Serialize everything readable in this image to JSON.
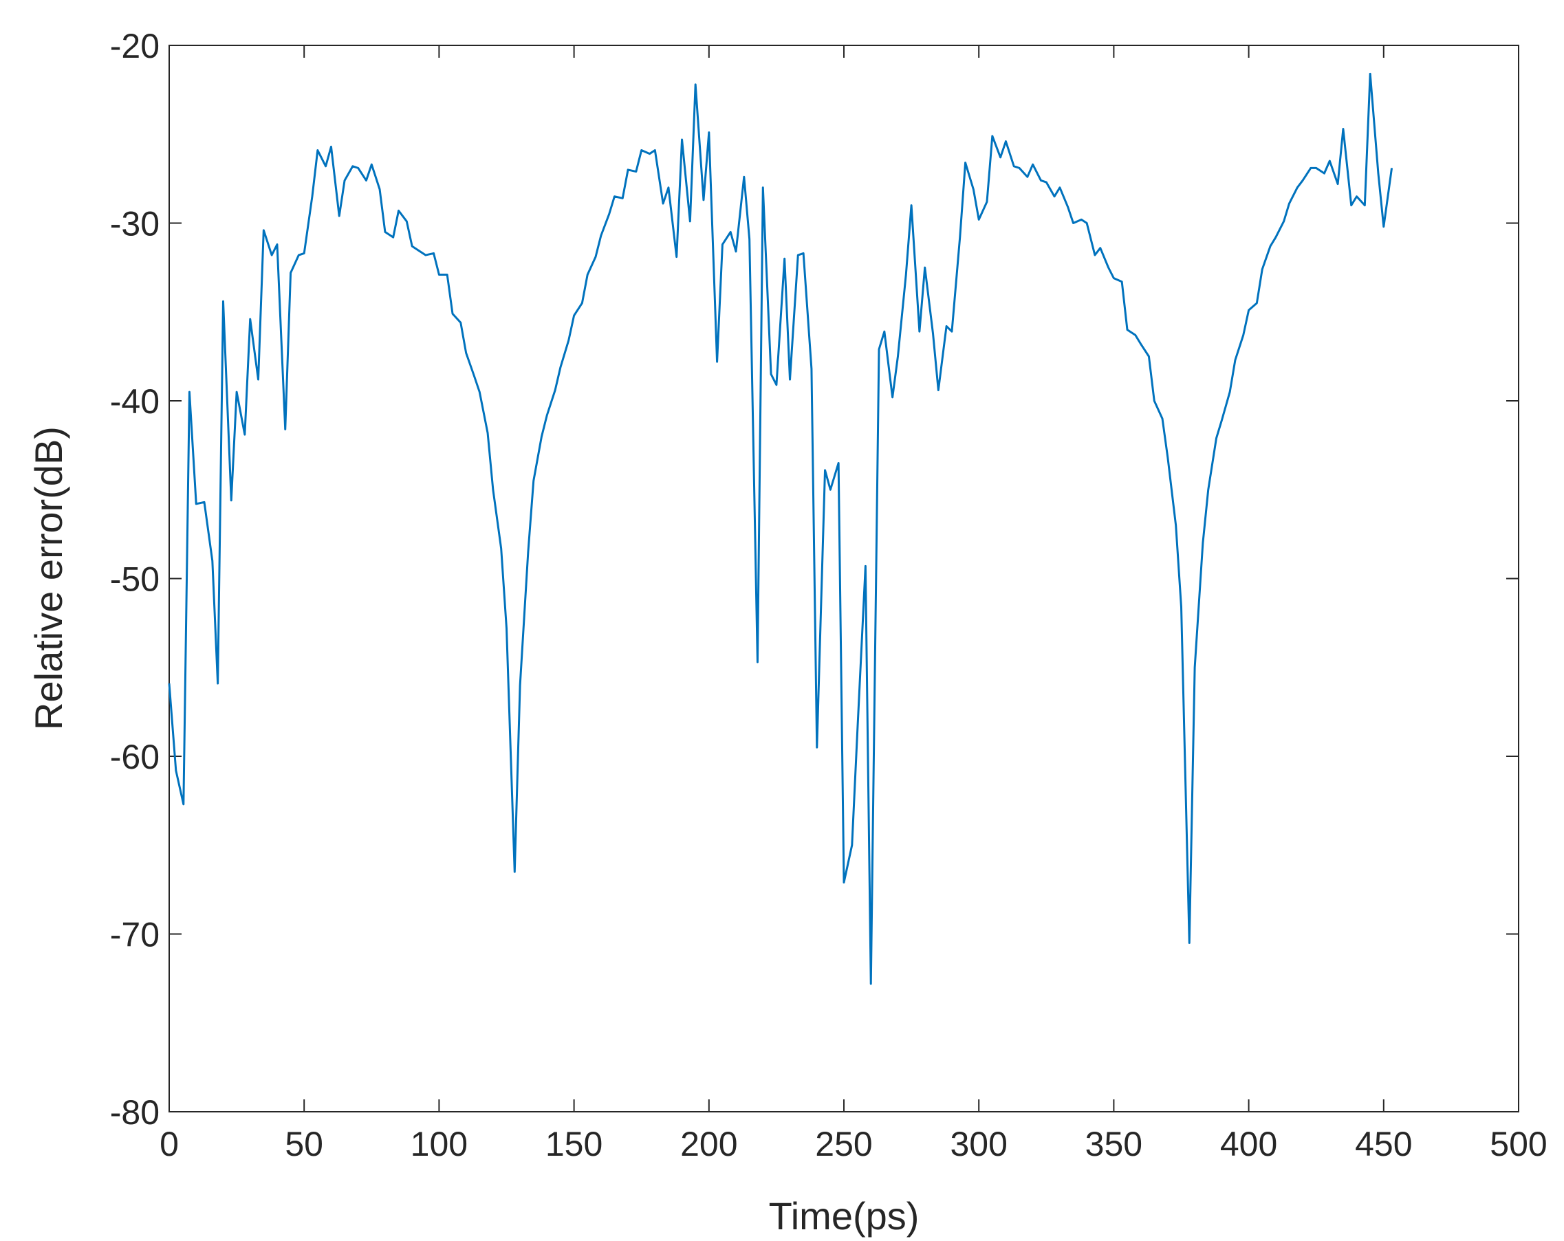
{
  "chart_data": {
    "type": "line",
    "x_label": "Time(ps)",
    "y_label": "Relative error(dB)",
    "x": [
      0,
      2.5,
      5.3,
      7.5,
      10,
      13,
      16,
      18,
      20,
      23,
      25,
      28,
      30,
      33,
      35,
      38,
      40,
      43,
      45,
      48,
      50,
      53,
      55,
      58,
      60,
      63,
      65,
      68,
      70,
      73,
      75,
      78,
      80,
      83,
      85,
      88,
      90,
      93,
      95,
      98,
      100,
      103,
      105,
      108,
      110,
      113,
      115,
      118,
      120,
      123,
      125,
      128,
      130,
      133,
      135,
      138,
      140,
      143,
      145,
      148,
      150,
      153,
      155,
      158,
      160,
      163,
      165,
      168,
      170,
      173,
      175,
      178,
      180,
      183,
      185,
      188,
      190,
      193,
      195,
      198,
      200,
      203,
      205,
      208,
      210,
      213,
      215,
      218,
      220,
      223,
      225,
      228,
      230,
      233,
      235,
      238,
      240,
      243,
      245,
      248,
      250,
      253,
      255,
      258,
      260,
      263,
      265,
      268,
      270,
      273,
      275,
      278,
      280,
      283,
      285,
      288,
      290,
      293,
      295,
      298,
      300,
      303,
      305,
      308,
      310,
      313,
      315,
      318,
      320,
      323,
      325,
      328,
      330,
      333,
      335,
      338,
      340,
      343,
      345,
      348,
      350,
      353,
      355,
      358,
      360,
      363,
      365,
      368,
      370,
      373,
      375,
      378,
      380,
      383,
      385,
      388,
      390,
      393,
      395,
      398,
      400,
      403,
      405,
      408,
      410,
      413,
      415,
      418,
      420,
      423,
      425,
      428,
      430,
      433,
      435,
      438,
      440,
      443,
      445,
      448,
      450,
      453
    ],
    "series": [
      {
        "name": "Relative error",
        "color": "#0072bd",
        "values": [
          -55.9,
          -60.8,
          -62.7,
          -39.5,
          -45.8,
          -45.7,
          -49,
          -55.9,
          -34.4,
          -45.6,
          -39.5,
          -41.9,
          -35.4,
          -38.8,
          -30.4,
          -31.8,
          -31.2,
          -41.6,
          -32.8,
          -31.8,
          -31.7,
          -28.5,
          -25.9,
          -26.8,
          -25.7,
          -29.6,
          -27.6,
          -26.8,
          -26.9,
          -27.6,
          -26.7,
          -28.1,
          -30.5,
          -30.8,
          -29.3,
          -29.9,
          -31.3,
          -31.6,
          -31.8,
          -31.7,
          -32.9,
          -32.9,
          -35.1,
          -35.6,
          -37.3,
          -38.6,
          -39.5,
          -41.8,
          -45,
          -48.3,
          -52.8,
          -66.5,
          -56,
          -48.5,
          -44.5,
          -42,
          -40.8,
          -39.4,
          -38.1,
          -36.6,
          -35.2,
          -34.5,
          -32.9,
          -31.9,
          -30.7,
          -29.5,
          -28.5,
          -28.6,
          -27,
          -27.1,
          -25.9,
          -26.1,
          -25.9,
          -28.9,
          -28,
          -31.9,
          -25.3,
          -29.9,
          -22.2,
          -28.7,
          -24.9,
          -37.8,
          -31.2,
          -30.5,
          -31.6,
          -27.4,
          -30.9,
          -54.7,
          -28,
          -38.5,
          -39.1,
          -32,
          -38.8,
          -31.8,
          -31.7,
          -38.2,
          -59.5,
          -43.9,
          -45,
          -43.5,
          -67.1,
          -65,
          -58.6,
          -49.3,
          -72.8,
          -37.1,
          -36.1,
          -39.8,
          -37.5,
          -32.9,
          -29,
          -36.1,
          -32.5,
          -36.2,
          -39.4,
          -35.8,
          -36.1,
          -30.8,
          -26.6,
          -28.1,
          -29.8,
          -28.8,
          -25.1,
          -26.3,
          -25.4,
          -26.8,
          -26.9,
          -27.4,
          -26.7,
          -27.6,
          -27.7,
          -28.5,
          -28,
          -29.1,
          -30,
          -29.8,
          -30,
          -31.8,
          -31.4,
          -32.5,
          -33.1,
          -33.3,
          -36,
          -36.3,
          -36.8,
          -37.5,
          -40,
          -41,
          -43.2,
          -47,
          -51.6,
          -70.5,
          -55,
          -48,
          -45,
          -42.1,
          -41.1,
          -39.5,
          -37.7,
          -36.3,
          -34.9,
          -34.5,
          -32.6,
          -31.3,
          -30.8,
          -29.9,
          -28.9,
          -28,
          -27.6,
          -26.9,
          -26.9,
          -27.2,
          -26.5,
          -27.8,
          -24.7,
          -29,
          -28.5,
          -29,
          -21.6,
          -27.2,
          -30.2,
          -26.9
        ]
      }
    ],
    "xlim": [
      0,
      500
    ],
    "xticks": [
      0,
      50,
      100,
      150,
      200,
      250,
      300,
      350,
      400,
      450,
      500
    ],
    "ylim": [
      -80,
      -20
    ],
    "yticks": [
      -80,
      -70,
      -60,
      -50,
      -40,
      -30,
      -20
    ]
  }
}
